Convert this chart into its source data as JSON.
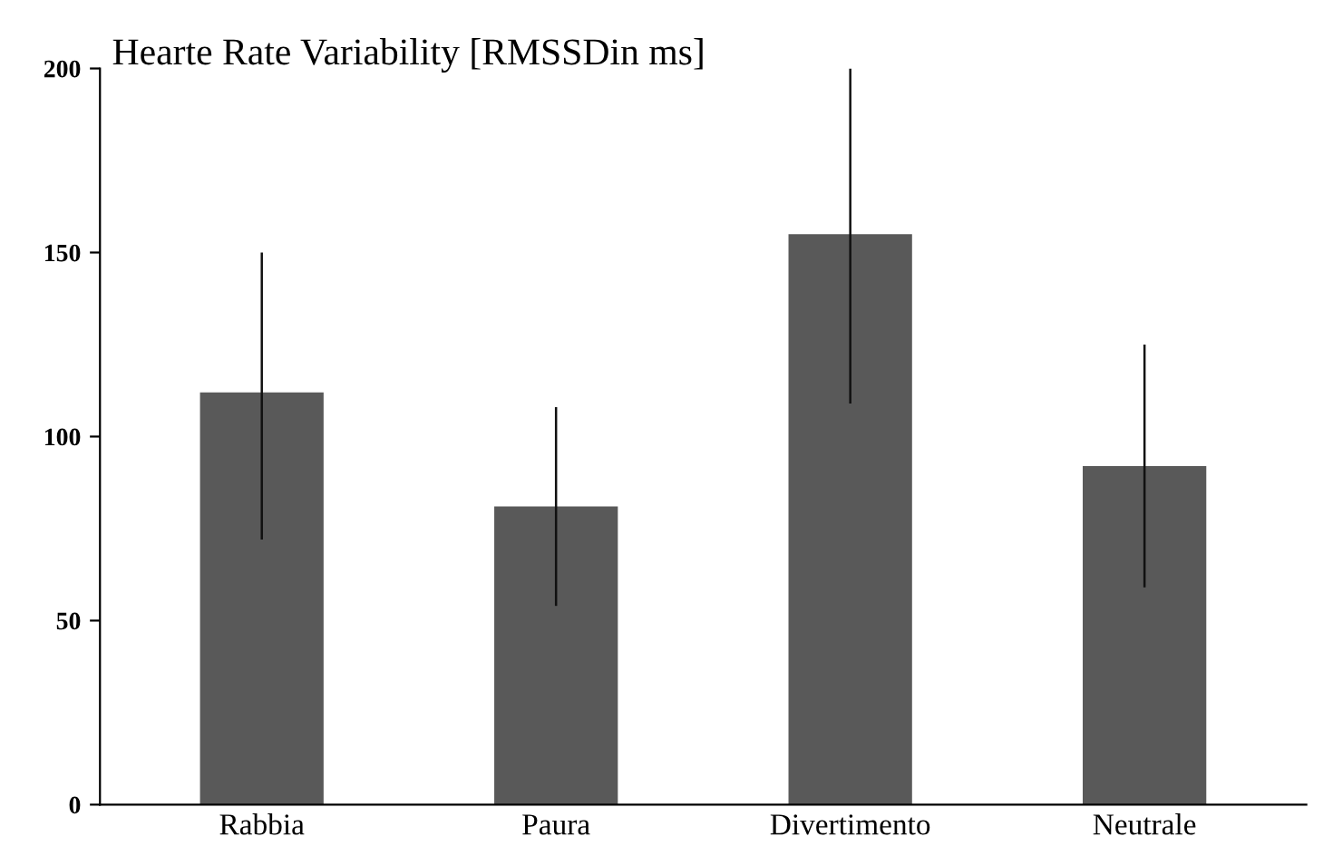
{
  "chart_data": {
    "type": "bar",
    "title": "Hearte Rate Variability [RMSSDin ms]",
    "categories": [
      "Rabbia",
      "Paura",
      "Divertimento",
      "Neutrale"
    ],
    "values": [
      112,
      81,
      155,
      92
    ],
    "errors": [
      [
        72,
        150
      ],
      [
        54,
        108
      ],
      [
        109,
        200
      ],
      [
        59,
        125
      ]
    ],
    "color": "#595959",
    "ylim": [
      0,
      200
    ],
    "yticks": [
      0,
      50,
      100,
      150,
      200
    ],
    "grid": false,
    "legend": false
  }
}
